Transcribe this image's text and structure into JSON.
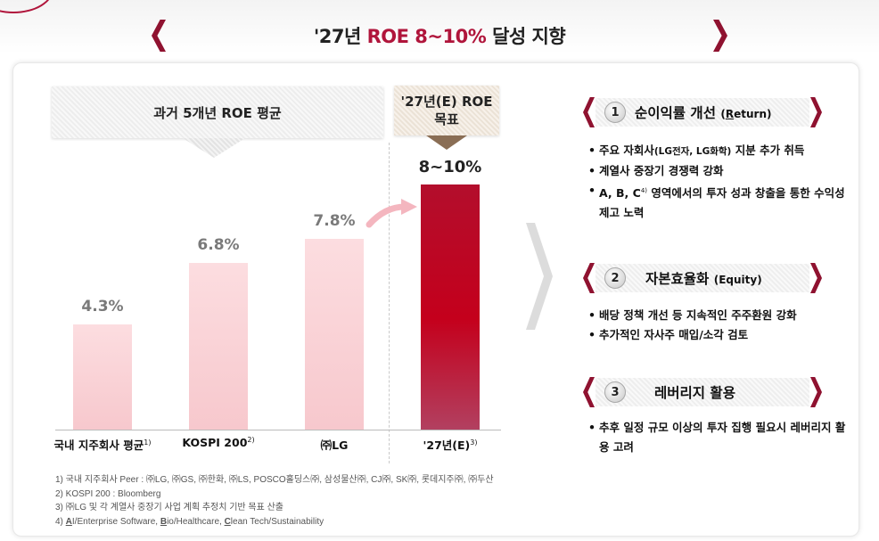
{
  "title": {
    "prefix": "'27년 ",
    "highlight": "ROE 8~10%",
    "suffix": " 달성 지향"
  },
  "left_banner": {
    "label": "과거 5개년 ROE 평균"
  },
  "right_banner": {
    "line1": "'27년(E) ROE",
    "line2": "목표"
  },
  "chart_data": {
    "type": "bar",
    "categories": [
      "국내 지주회사 평균",
      "KOSPI 200",
      "㈜LG",
      "'27년(E)"
    ],
    "category_notes": [
      "1)",
      "2)",
      "",
      "3)"
    ],
    "values": [
      4.3,
      6.8,
      7.8,
      10
    ],
    "value_labels": [
      "4.3%",
      "6.8%",
      "7.8%",
      "8~10%"
    ],
    "target_range": [
      8,
      10
    ],
    "ylim": [
      0,
      11
    ],
    "colors": {
      "history": "#f9d3d7",
      "target": "#c4001c"
    }
  },
  "sections": [
    {
      "number": "1",
      "title": "순이익률 개선",
      "en_open": "(",
      "en_underlined": "R",
      "en_rest": "eturn)",
      "bullets": [
        {
          "pre": "주요 자회사",
          "small": "(LG전자, LG화학)",
          "post": " 지분 추가 취득"
        },
        {
          "pre": "계열사 중장기 경쟁력 강화",
          "small": "",
          "post": ""
        },
        {
          "pre": "A, B, C",
          "note": "4)",
          "post": " 영역에서의 투자 성과 창출을 통한 수익성 제고 노력"
        }
      ]
    },
    {
      "number": "2",
      "title": "자본효율화",
      "en_open": "(",
      "en_underlined": "",
      "en_rest": "Equity)",
      "bullets": [
        {
          "pre": "배당 정책 개선 등 지속적인 주주환원 강화"
        },
        {
          "pre": "추가적인 자사주 매입/소각 검토"
        }
      ]
    },
    {
      "number": "3",
      "title": "레버리지 활용",
      "bullets": [
        {
          "pre": "추후 일정 규모 이상의 투자 집행 필요시 레버리지 활용 고려"
        }
      ]
    }
  ],
  "footnotes": {
    "f1": "1) 국내 지주회사 Peer : ㈜LG, ㈜GS, ㈜한화, ㈜LS, POSCO홀딩스㈜, 삼성물산㈜, CJ㈜, SK㈜, 롯데지주㈜, ㈜두산",
    "f2": "2) KOSPI 200 : Bloomberg",
    "f3": "3) ㈜LG 및 각 계열사 중장기 사업 계획 추정치 기반 목표 산출",
    "f4_prefix": "4) ",
    "f4_a": "A",
    "f4_a_rest": "I/Enterprise Software, ",
    "f4_b": "B",
    "f4_b_rest": "io/Healthcare, ",
    "f4_c": "C",
    "f4_c_rest": "lean Tech/Sustainability"
  },
  "icons": {
    "title_left": "chevron-left-icon",
    "title_right": "chevron-right-icon",
    "flow": "chevron-right-icon",
    "trend": "curved-arrow-icon"
  }
}
